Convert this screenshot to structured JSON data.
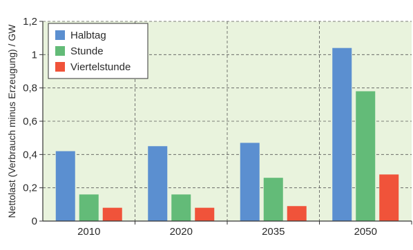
{
  "chart_data": {
    "type": "bar",
    "title": "",
    "xlabel": "",
    "ylabel": "Nettolast (Verbrauch minus Erzeugung) / GW",
    "categories": [
      "2010",
      "2020",
      "2035",
      "2050"
    ],
    "ylim": [
      0,
      1.2
    ],
    "yticks": [
      "0",
      "0,2",
      "0,4",
      "0,6",
      "0,8",
      "1",
      "1,2"
    ],
    "grid": true,
    "legend_position": "top-left",
    "background_color": "#e9f3dd",
    "series": [
      {
        "name": "Halbtag",
        "color": "#5b8fd0",
        "values": [
          0.42,
          0.45,
          0.47,
          1.04
        ]
      },
      {
        "name": "Stunde",
        "color": "#63bb78",
        "values": [
          0.16,
          0.16,
          0.26,
          0.78
        ]
      },
      {
        "name": "Viertelstunde",
        "color": "#f0533a",
        "values": [
          0.08,
          0.08,
          0.09,
          0.28
        ]
      }
    ]
  }
}
